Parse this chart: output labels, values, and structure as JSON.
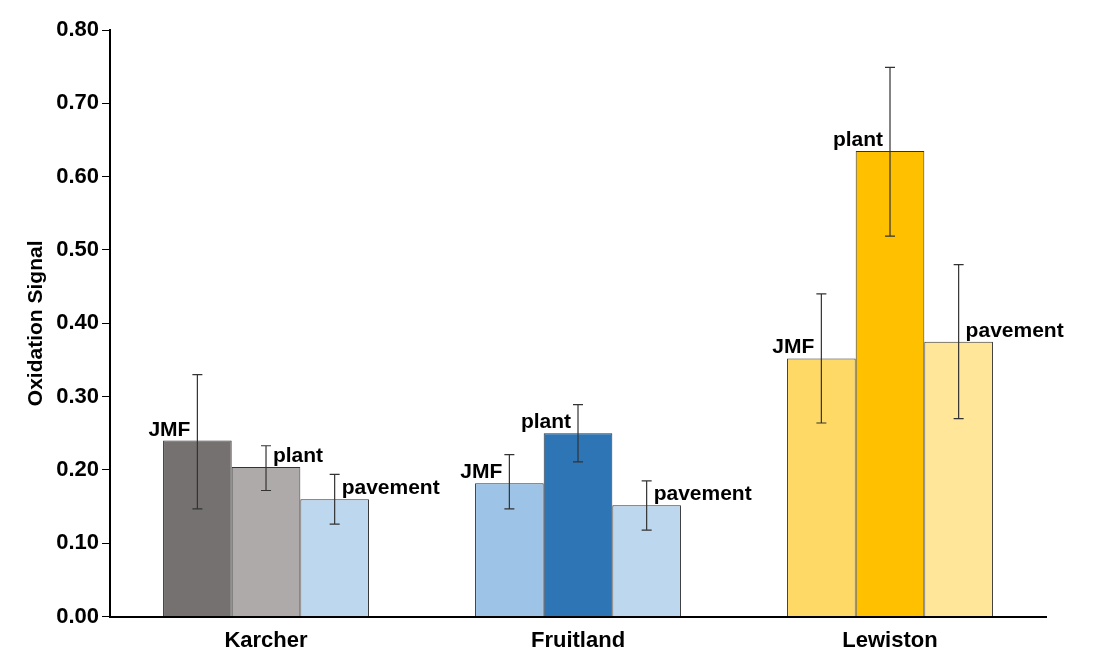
{
  "chart_data": {
    "type": "bar",
    "ylabel": "Oxidation Signal",
    "categories": [
      "Karcher",
      "Fruitland",
      "Lewiston"
    ],
    "series": [
      {
        "name": "JMF",
        "colors": [
          "#767171",
          "#9dc3e6",
          "#ffd966"
        ],
        "values": [
          0.24,
          0.182,
          0.352
        ],
        "errors": [
          [
            0.147,
            0.33
          ],
          [
            0.147,
            0.221
          ],
          [
            0.264,
            0.44
          ]
        ]
      },
      {
        "name": "plant",
        "colors": [
          "#aeaaaa",
          "#2e75b6",
          "#ffc000"
        ],
        "values": [
          0.204,
          0.25,
          0.635
        ],
        "errors": [
          [
            0.172,
            0.233
          ],
          [
            0.211,
            0.289
          ],
          [
            0.519,
            0.749
          ]
        ]
      },
      {
        "name": "pavement",
        "colors": [
          "#bdd7ee",
          "#bdd7ee",
          "#ffe699"
        ],
        "values": [
          0.16,
          0.152,
          0.375
        ],
        "errors": [
          [
            0.126,
            0.194
          ],
          [
            0.118,
            0.185
          ],
          [
            0.27,
            0.48
          ]
        ]
      }
    ],
    "ylim": [
      0,
      0.8
    ],
    "yticks": [
      {
        "value": 0,
        "label": "0.00"
      },
      {
        "value": 0.1,
        "label": "0.10"
      },
      {
        "value": 0.2,
        "label": "0.20"
      },
      {
        "value": 0.3,
        "label": "0.30"
      },
      {
        "value": 0.4,
        "label": "0.40"
      },
      {
        "value": 0.5,
        "label": "0.50"
      },
      {
        "value": 0.6,
        "label": "0.60"
      },
      {
        "value": 0.7,
        "label": "0.70"
      },
      {
        "value": 0.8,
        "label": "0.80"
      }
    ],
    "grid": false,
    "legend": false
  }
}
